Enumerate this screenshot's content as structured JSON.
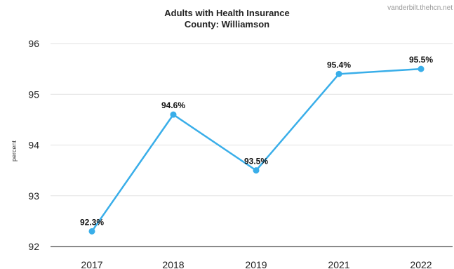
{
  "watermark": "vanderbilt.thehcn.net",
  "chart_data": {
    "type": "line",
    "title": "Adults with Health Insurance",
    "subtitle": "County: Williamson",
    "xlabel": "",
    "ylabel": "percent",
    "categories": [
      "2017",
      "2018",
      "2019",
      "2021",
      "2022"
    ],
    "series": [
      {
        "values": [
          92.3,
          94.6,
          93.5,
          95.4,
          95.5
        ],
        "labels": [
          "92.3%",
          "94.6%",
          "93.5%",
          "95.4%",
          "95.5%"
        ],
        "color": "#39aee9"
      }
    ],
    "ylim": [
      92,
      96
    ],
    "yticks": [
      92,
      93,
      94,
      95,
      96
    ],
    "grid": true,
    "gridColor": "#e2e2e2",
    "axisColor": "#444444",
    "legend": "none"
  }
}
